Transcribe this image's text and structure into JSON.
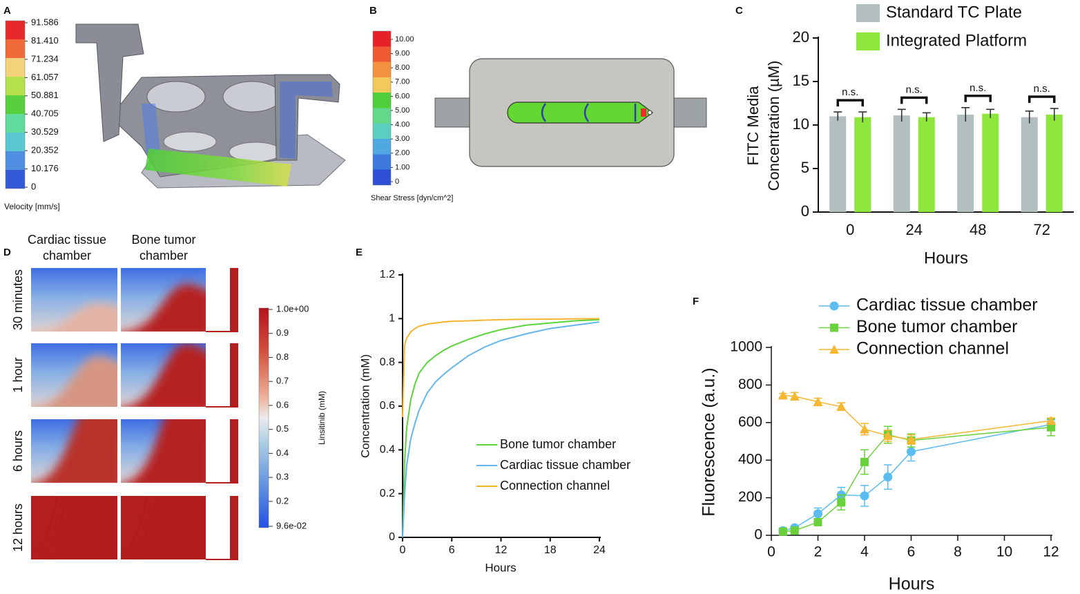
{
  "panels": {
    "A": {
      "label": "A",
      "colorbar": {
        "title": "Velocity [mm/s]",
        "lim": [
          0,
          91.586
        ],
        "ticks": [
          91.586,
          {
            "value": 81.41,
            "label": "81.410"
          },
          71.234,
          61.057,
          50.881,
          40.705,
          30.529,
          20.352,
          10.176,
          0
        ]
      }
    },
    "B": {
      "label": "B",
      "colorbar": {
        "title": "Shear Stress [dyn/cm^2]",
        "lim": [
          0,
          10
        ],
        "ticks": [
          {
            "value": 10,
            "label": "10.00"
          },
          {
            "value": 9,
            "label": "9.00"
          },
          {
            "value": 8,
            "label": "8.00"
          },
          {
            "value": 7,
            "label": "7.00"
          },
          {
            "value": 6,
            "label": "6.00"
          },
          {
            "value": 5,
            "label": "5.00"
          },
          {
            "value": 4,
            "label": "4.00"
          },
          {
            "value": 3,
            "label": "3.00"
          },
          {
            "value": 2,
            "label": "2.00"
          },
          {
            "value": 1,
            "label": "1.00"
          },
          0
        ]
      }
    },
    "D": {
      "label": "D",
      "columns": [
        [
          "Cardiac tissue",
          "chamber"
        ],
        [
          "Bone tumor",
          "chamber"
        ]
      ],
      "rows": [
        "30 minutes",
        "1 hour",
        "6 hours",
        "12 hours"
      ],
      "colorbar": {
        "title": "Linsitinib (mM)",
        "lim": [
          0.096,
          1
        ],
        "ticks": [
          {
            "value": 1,
            "label": "1.0e+00"
          },
          0.9,
          0.8,
          0.7,
          0.6,
          0.5,
          0.4,
          0.3,
          0.2,
          {
            "value": 0.096,
            "label": "9.6e-02"
          }
        ]
      }
    }
  },
  "chart_data": [
    {
      "type": "bar",
      "panel_label": "C",
      "xlabel": "Hours",
      "ylabel": [
        "FITC Media",
        "Concentration (µM)"
      ],
      "categories": [
        "0",
        "24",
        "48",
        "72"
      ],
      "series": [
        {
          "name": "Standard TC Plate",
          "color": "#b3bfbf",
          "values": [
            11.0,
            11.1,
            11.2,
            10.9
          ],
          "errors": [
            0.5,
            0.7,
            0.8,
            0.7
          ]
        },
        {
          "name": "Integrated Platform",
          "color": "#8ee63c",
          "values": [
            10.9,
            10.9,
            11.3,
            11.2
          ],
          "errors": [
            0.6,
            0.5,
            0.5,
            0.7
          ]
        }
      ],
      "annotations": [
        "n.s.",
        "n.s.",
        "n.s.",
        "n.s."
      ],
      "ylim": [
        0,
        20
      ],
      "yticks": [
        0,
        5,
        10,
        15,
        20
      ]
    },
    {
      "type": "line",
      "panel_label": "E",
      "xlabel": "Hours",
      "ylabel": "Concentration (mM)",
      "x": [
        0,
        0.25,
        0.5,
        1,
        1.5,
        2,
        3,
        4,
        5,
        6,
        8,
        10,
        12,
        15,
        18,
        21,
        24
      ],
      "series": [
        {
          "name": "Bone tumor chamber",
          "color": "#5cd33a",
          "values": [
            0,
            0.35,
            0.5,
            0.63,
            0.7,
            0.75,
            0.8,
            0.83,
            0.855,
            0.875,
            0.905,
            0.93,
            0.95,
            0.97,
            0.98,
            0.99,
            0.995
          ]
        },
        {
          "name": "Cardiac tissue chamber",
          "color": "#64b5ec",
          "values": [
            0,
            0.2,
            0.33,
            0.45,
            0.52,
            0.58,
            0.66,
            0.71,
            0.745,
            0.775,
            0.83,
            0.87,
            0.9,
            0.93,
            0.955,
            0.97,
            0.985
          ]
        },
        {
          "name": "Connection channel",
          "color": "#f5b330",
          "values": [
            0.55,
            0.88,
            0.91,
            0.94,
            0.955,
            0.965,
            0.975,
            0.98,
            0.985,
            0.988,
            0.99,
            0.993,
            0.995,
            0.997,
            0.998,
            0.999,
            1.0
          ]
        }
      ],
      "xlim": [
        0,
        24
      ],
      "xticks": [
        0,
        6,
        12,
        18,
        24
      ],
      "ylim": [
        0,
        1.2
      ],
      "yticks": [
        0,
        0.2,
        0.4,
        0.6,
        0.8,
        1,
        1.2
      ]
    },
    {
      "type": "line",
      "panel_label": "F",
      "xlabel": "Hours",
      "ylabel": "Fluorescence (a.u.)",
      "x": [
        0.5,
        1,
        2,
        3,
        4,
        5,
        6,
        12
      ],
      "series": [
        {
          "name": "Cardiac tissue chamber",
          "color": "#5bbcf0",
          "marker": "circle",
          "values": [
            25,
            40,
            115,
            215,
            210,
            310,
            445,
            590
          ],
          "errors": [
            10,
            10,
            30,
            40,
            55,
            65,
            50,
            25
          ]
        },
        {
          "name": "Bone tumor chamber",
          "color": "#6ad13a",
          "marker": "square",
          "values": [
            20,
            25,
            70,
            175,
            390,
            535,
            505,
            575
          ],
          "errors": [
            5,
            5,
            10,
            40,
            65,
            45,
            35,
            45
          ]
        },
        {
          "name": "Connection channel",
          "color": "#f5b731",
          "marker": "triangle",
          "values": [
            745,
            740,
            710,
            685,
            565,
            530,
            510,
            610
          ],
          "errors": [
            10,
            20,
            20,
            20,
            30,
            30,
            25,
            15
          ]
        }
      ],
      "xlim": [
        0,
        12
      ],
      "xticks": [
        0,
        2,
        4,
        6,
        8,
        10,
        12
      ],
      "ylim": [
        0,
        1000
      ],
      "yticks": [
        0,
        200,
        400,
        600,
        800,
        1000
      ]
    }
  ]
}
